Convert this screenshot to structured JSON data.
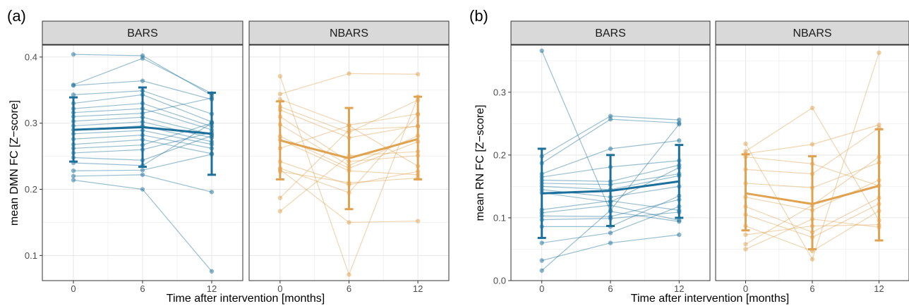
{
  "chart_data": [
    {
      "type": "line",
      "panel_label": "(a)",
      "ylabel": "mean DMN FC [Z−score]",
      "xlabel": "Time after intervention [months]",
      "x_ticks": [
        "0",
        "6",
        "12"
      ],
      "y_ticks": [
        "0.1",
        "0.2",
        "0.3",
        "0.4"
      ],
      "ylim": [
        0.062,
        0.418
      ],
      "grid": true,
      "facets": [
        {
          "strip": "BARS",
          "color": "#1b6f9a",
          "subjects": [
            [
              0.404,
              0.402,
              0.342
            ],
            [
              0.358,
              0.398,
              0.345
            ],
            [
              0.357,
              0.364,
              0.336
            ],
            [
              0.343,
              0.349,
              0.314
            ],
            [
              0.33,
              0.343,
              0.302
            ],
            [
              0.322,
              0.33,
              0.295
            ],
            [
              0.316,
              0.322,
              0.29
            ],
            [
              0.31,
              0.315,
              0.338
            ],
            [
              0.303,
              0.309,
              0.283
            ],
            [
              0.296,
              0.302,
              0.278
            ],
            [
              0.29,
              0.296,
              0.272
            ],
            [
              0.284,
              0.289,
              0.268
            ],
            [
              0.276,
              0.282,
              0.262
            ],
            [
              0.268,
              0.275,
              0.254
            ],
            [
              0.262,
              0.267,
              0.3
            ],
            [
              0.255,
              0.26,
              0.286
            ],
            [
              0.248,
              0.244,
              0.281
            ],
            [
              0.24,
              0.236,
              0.3
            ],
            [
              0.228,
              0.229,
              0.253
            ],
            [
              0.22,
              0.222,
              0.196
            ],
            [
              0.214,
              0.2,
              0.076
            ]
          ],
          "mean": [
            0.29,
            0.294,
            0.284
          ],
          "err_low": [
            0.242,
            0.234,
            0.222
          ],
          "err_high": [
            0.339,
            0.354,
            0.346
          ]
        },
        {
          "strip": "NBARS",
          "color": "#e0a24f",
          "subjects": [
            [
              0.371,
              0.071,
              0.34
            ],
            [
              0.344,
              0.375,
              0.374
            ],
            [
              0.336,
              0.297,
              0.314
            ],
            [
              0.325,
              0.286,
              0.335
            ],
            [
              0.32,
              0.278,
              0.296
            ],
            [
              0.31,
              0.242,
              0.251
            ],
            [
              0.298,
              0.236,
              0.281
            ],
            [
              0.28,
              0.232,
              0.272
            ],
            [
              0.275,
              0.228,
              0.222
            ],
            [
              0.262,
              0.296,
              0.235
            ],
            [
              0.242,
              0.207,
              0.227
            ],
            [
              0.232,
              0.195,
              0.313
            ],
            [
              0.23,
              0.15,
              0.152
            ],
            [
              0.227,
              0.21,
              0.217
            ],
            [
              0.187,
              0.29,
              0.295
            ],
            [
              0.167,
              0.251,
              0.257
            ]
          ],
          "mean": [
            0.274,
            0.247,
            0.276
          ],
          "err_low": [
            0.215,
            0.17,
            0.215
          ],
          "err_high": [
            0.333,
            0.323,
            0.34
          ]
        }
      ]
    },
    {
      "type": "line",
      "panel_label": "(b)",
      "ylabel": "mean RN FC [Z−score]",
      "xlabel": "Time after intervention [months]",
      "x_ticks": [
        "0",
        "6",
        "12"
      ],
      "y_ticks": [
        "0.0",
        "0.1",
        "0.2",
        "0.3"
      ],
      "ylim": [
        0.0,
        0.375
      ],
      "grid": true,
      "facets": [
        {
          "strip": "BARS",
          "color": "#1b6f9a",
          "subjects": [
            [
              0.366,
              0.11,
              0.094
            ],
            [
              0.198,
              0.262,
              0.256
            ],
            [
              0.187,
              0.257,
              0.251
            ],
            [
              0.17,
              0.21,
              0.223
            ],
            [
              0.165,
              0.181,
              0.191
            ],
            [
              0.16,
              0.158,
              0.184
            ],
            [
              0.155,
              0.153,
              0.17
            ],
            [
              0.15,
              0.145,
              0.167
            ],
            [
              0.145,
              0.133,
              0.15
            ],
            [
              0.14,
              0.125,
              0.18
            ],
            [
              0.113,
              0.127,
              0.112
            ],
            [
              0.108,
              0.12,
              0.096
            ],
            [
              0.103,
              0.102,
              0.129
            ],
            [
              0.097,
              0.099,
              0.109
            ],
            [
              0.086,
              0.086,
              0.135
            ],
            [
              0.06,
              0.076,
              0.118
            ],
            [
              0.032,
              0.06,
              0.073
            ],
            [
              0.016,
              0.112,
              0.249
            ]
          ],
          "mean": [
            0.139,
            0.143,
            0.158
          ],
          "err_low": [
            0.068,
            0.087,
            0.1
          ],
          "err_high": [
            0.21,
            0.2,
            0.216
          ]
        },
        {
          "strip": "NBARS",
          "color": "#e0a24f",
          "subjects": [
            [
              0.218,
              0.034,
              0.363
            ],
            [
              0.206,
              0.275,
              0.096
            ],
            [
              0.202,
              0.217,
              0.248
            ],
            [
              0.197,
              0.186,
              0.151
            ],
            [
              0.177,
              0.17,
              0.243
            ],
            [
              0.155,
              0.148,
              0.188
            ],
            [
              0.133,
              0.112,
              0.16
            ],
            [
              0.118,
              0.077,
              0.132
            ],
            [
              0.105,
              0.069,
              0.122
            ],
            [
              0.087,
              0.047,
              0.111
            ],
            [
              0.073,
              0.087,
              0.089
            ],
            [
              0.058,
              0.12,
              0.197
            ],
            [
              0.05,
              0.098,
              0.085
            ]
          ],
          "mean": [
            0.139,
            0.122,
            0.151
          ],
          "err_low": [
            0.08,
            0.05,
            0.064
          ],
          "err_high": [
            0.201,
            0.198,
            0.241
          ]
        }
      ]
    }
  ]
}
